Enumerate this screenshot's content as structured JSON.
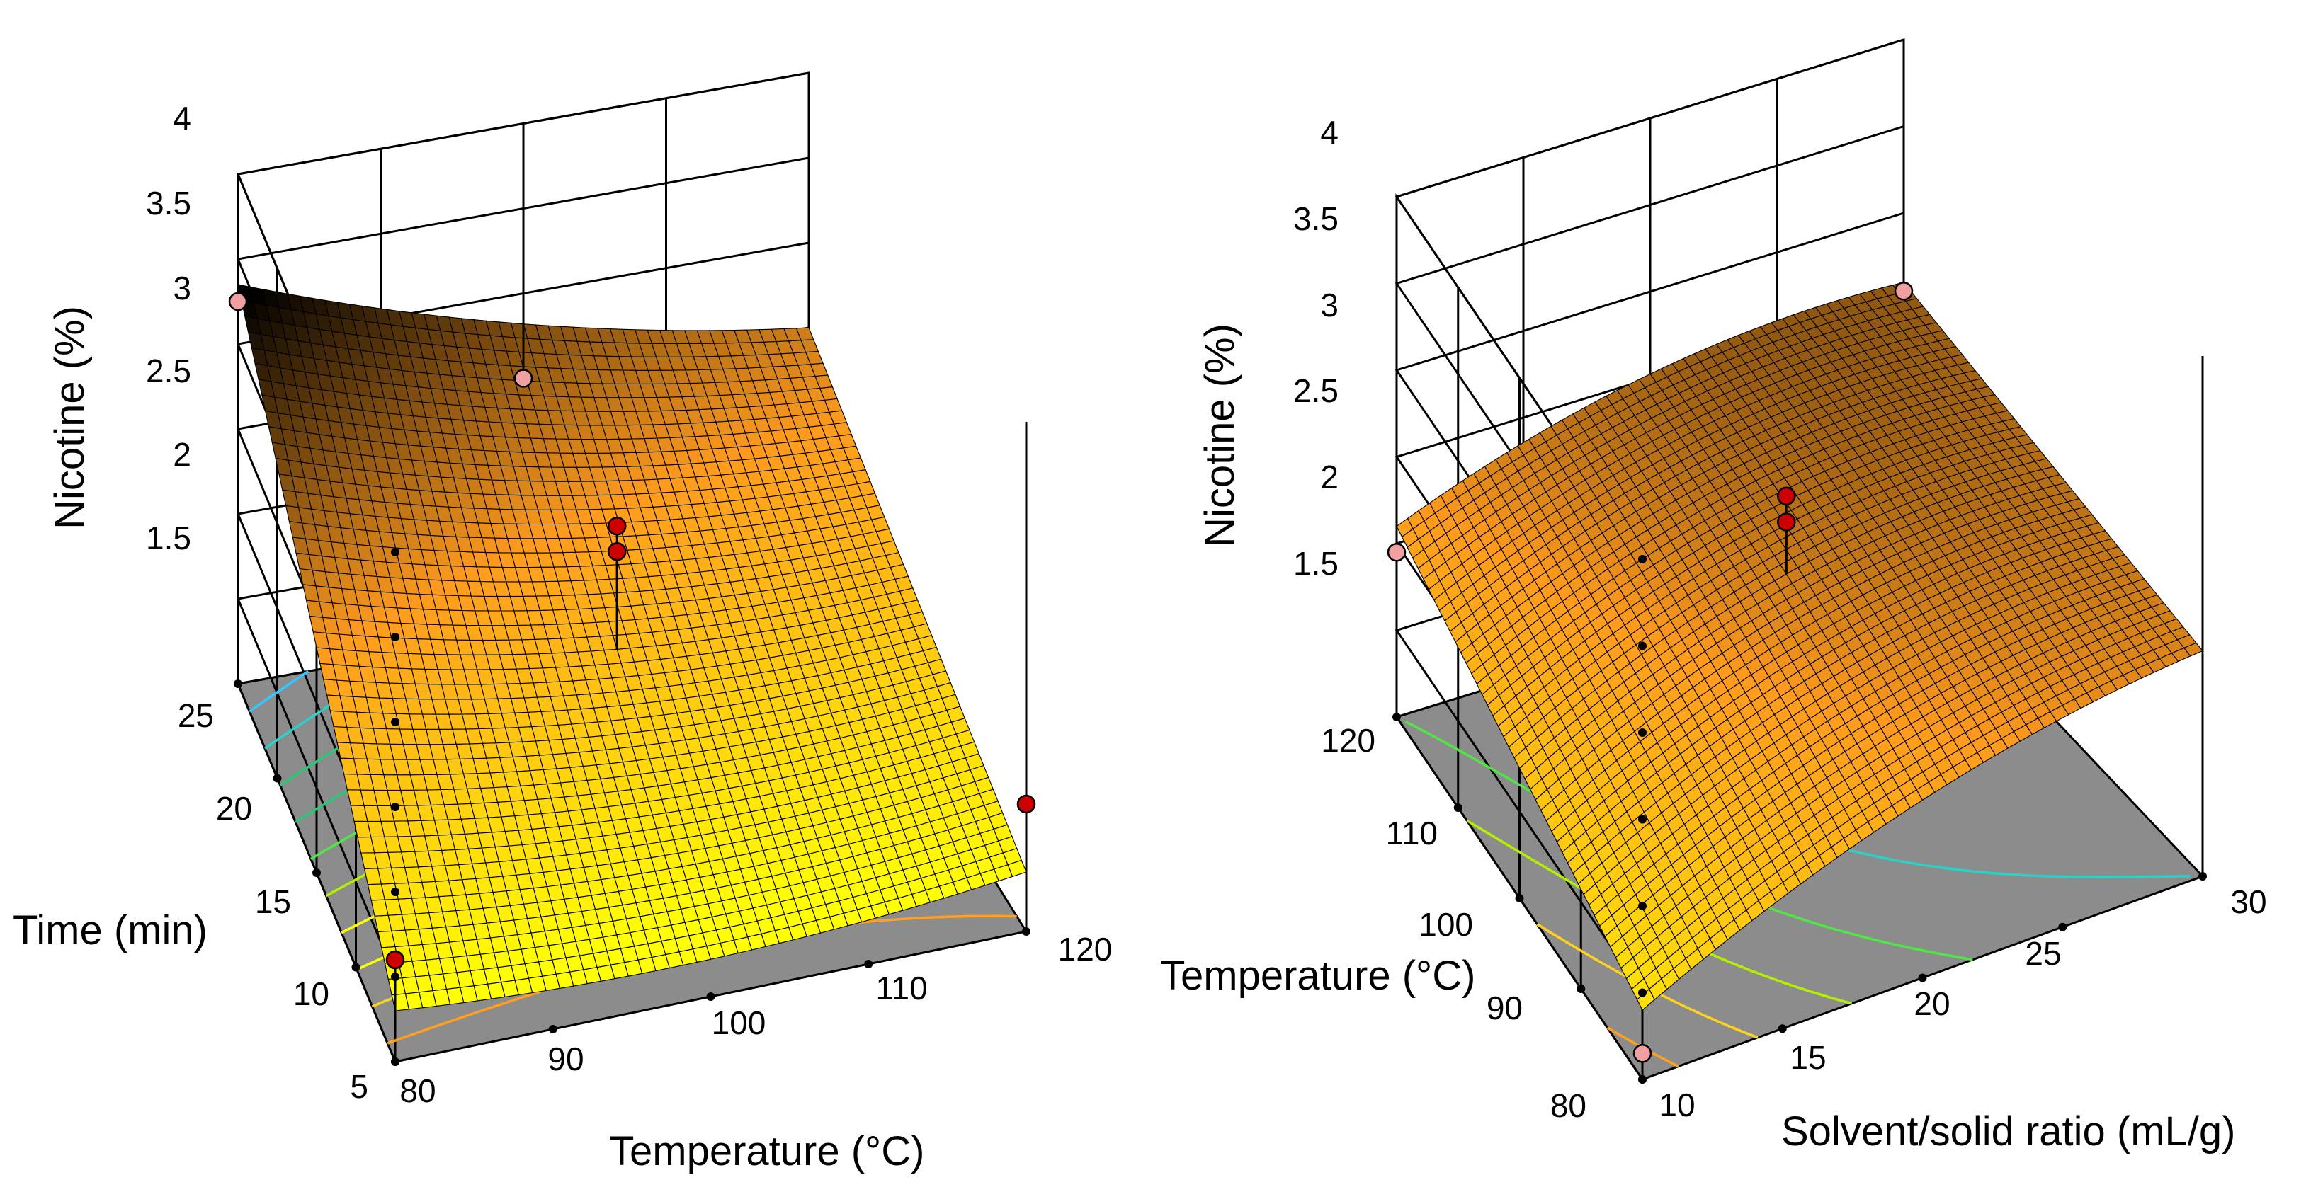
{
  "colors": {
    "floor": "#8c8c8c",
    "frame": "#000000",
    "surface_low": "#ffff00",
    "surface_mid": "#ff9b1e",
    "surface_high": "#000000",
    "design_point_above": "#cc0000",
    "design_point_below": "#f0a0a0"
  },
  "chart_data": [
    {
      "type": "surface",
      "title": "",
      "x": {
        "label": "Temperature (°C)",
        "range": [
          80,
          120
        ],
        "ticks": [
          "80",
          "90",
          "100",
          "110",
          "120"
        ]
      },
      "y": {
        "label": "Time (min)",
        "range": [
          5,
          25
        ],
        "ticks": [
          "5",
          "10",
          "15",
          "20",
          "25"
        ]
      },
      "z": {
        "label": "Nicotine  (%)",
        "range": [
          1,
          4
        ],
        "ticks": [
          "1.5",
          "2",
          "2.5",
          "3",
          "3.5",
          "4"
        ]
      },
      "surface_corners": [
        {
          "temperature": 80,
          "time": 5,
          "nicotine": 1.3
        },
        {
          "temperature": 120,
          "time": 5,
          "nicotine": 1.35
        },
        {
          "temperature": 80,
          "time": 25,
          "nicotine": 3.35
        },
        {
          "temperature": 120,
          "time": 25,
          "nicotine": 2.5
        }
      ],
      "contour_levels": [
        1.4,
        1.6,
        1.8,
        2.0,
        2.2,
        2.4,
        2.6,
        2.8,
        3.0,
        3.2
      ],
      "design_points": [
        {
          "temperature": 80,
          "time": 25,
          "nicotine": 3.25
        },
        {
          "temperature": 80,
          "time": 5,
          "nicotine": 1.6
        },
        {
          "temperature": 100,
          "time": 15,
          "nicotine": 2.7
        },
        {
          "temperature": 100,
          "time": 15,
          "nicotine": 2.55
        },
        {
          "temperature": 100,
          "time": 25,
          "nicotine": 2.5
        },
        {
          "temperature": 120,
          "time": 5,
          "nicotine": 1.75
        }
      ]
    },
    {
      "type": "surface",
      "title": "",
      "x": {
        "label": "Solvent/solid ratio (mL/g)",
        "range": [
          10,
          30
        ],
        "ticks": [
          "10",
          "15",
          "20",
          "25",
          "30"
        ]
      },
      "y": {
        "label": "Temperature (°C)",
        "range": [
          80,
          120
        ],
        "ticks": [
          "80",
          "90",
          "100",
          "110",
          "120"
        ]
      },
      "z": {
        "label": "Nicotine  (%)",
        "range": [
          1,
          4
        ],
        "ticks": [
          "1.5",
          "2",
          "2.5",
          "3",
          "3.5",
          "4"
        ]
      },
      "surface_corners": [
        {
          "ratio": 10,
          "temperature": 80,
          "nicotine": 1.4
        },
        {
          "ratio": 30,
          "temperature": 80,
          "nicotine": 2.3
        },
        {
          "ratio": 10,
          "temperature": 120,
          "nicotine": 2.1
        },
        {
          "ratio": 30,
          "temperature": 120,
          "nicotine": 2.6
        }
      ],
      "contour_levels": [
        1.5,
        1.7,
        1.9,
        2.1,
        2.3,
        2.5
      ],
      "design_points": [
        {
          "ratio": 10,
          "temperature": 120,
          "nicotine": 1.95
        },
        {
          "ratio": 20,
          "temperature": 100,
          "nicotine": 2.8
        },
        {
          "ratio": 20,
          "temperature": 100,
          "nicotine": 2.65
        },
        {
          "ratio": 30,
          "temperature": 120,
          "nicotine": 2.55
        },
        {
          "ratio": 10,
          "temperature": 80,
          "nicotine": 1.15
        }
      ]
    }
  ]
}
